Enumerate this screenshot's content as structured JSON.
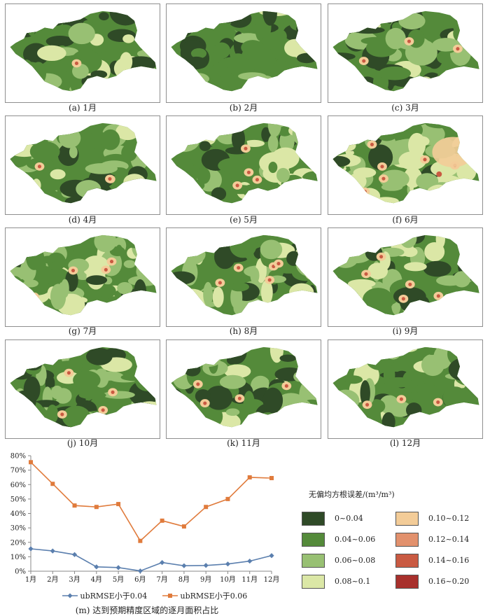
{
  "panels": [
    {
      "caption": "(a) 1月"
    },
    {
      "caption": "(b) 2月"
    },
    {
      "caption": "(c) 3月"
    },
    {
      "caption": "(d) 4月"
    },
    {
      "caption": "(e) 5月"
    },
    {
      "caption": "(f) 6月"
    },
    {
      "caption": "(g) 7月"
    },
    {
      "caption": "(h) 8月"
    },
    {
      "caption": "(i) 9月"
    },
    {
      "caption": "(j) 10月"
    },
    {
      "caption": "(k) 11月"
    },
    {
      "caption": "(l) 12月"
    }
  ],
  "colorbar": {
    "title": "无偏均方根误差/(m³/m³)",
    "items": [
      {
        "label": "0~0.04",
        "color": "#2f4a27"
      },
      {
        "label": "0.04~0.06",
        "color": "#548a3a"
      },
      {
        "label": "0.06~0.08",
        "color": "#98c073"
      },
      {
        "label": "0.08~0.1",
        "color": "#dbe7a6"
      },
      {
        "label": "0.10~0.12",
        "color": "#f3cc98"
      },
      {
        "label": "0.12~0.14",
        "color": "#e2916d"
      },
      {
        "label": "0.14~0.16",
        "color": "#c95a42"
      },
      {
        "label": "0.16~0.20",
        "color": "#a8302c"
      }
    ]
  },
  "chart_data": {
    "type": "line",
    "categories": [
      "1月",
      "2月",
      "3月",
      "4月",
      "5月",
      "6月",
      "7月",
      "8月",
      "9月",
      "10月",
      "11月",
      "12月"
    ],
    "series": [
      {
        "name": "ubRMSE小于0.04",
        "color": "#5b7fae",
        "marker": "diamond",
        "values": [
          15.5,
          14.0,
          11.5,
          3.0,
          2.5,
          0.2,
          6.0,
          3.8,
          4.0,
          5.0,
          7.0,
          10.8
        ]
      },
      {
        "name": "ubRMSE小于0.06",
        "color": "#e07b3c",
        "marker": "square",
        "values": [
          75.5,
          60.5,
          45.5,
          44.5,
          46.5,
          21.0,
          35.0,
          31.0,
          44.5,
          50.0,
          65.0,
          64.5
        ]
      }
    ],
    "yticks": [
      "0%",
      "10%",
      "20%",
      "30%",
      "40%",
      "50%",
      "60%",
      "70%",
      "80%"
    ],
    "ylim": [
      0,
      80
    ],
    "grid": false,
    "legend": "bottom",
    "caption": "(m) 达到预期精度区域的逐月面积占比"
  }
}
